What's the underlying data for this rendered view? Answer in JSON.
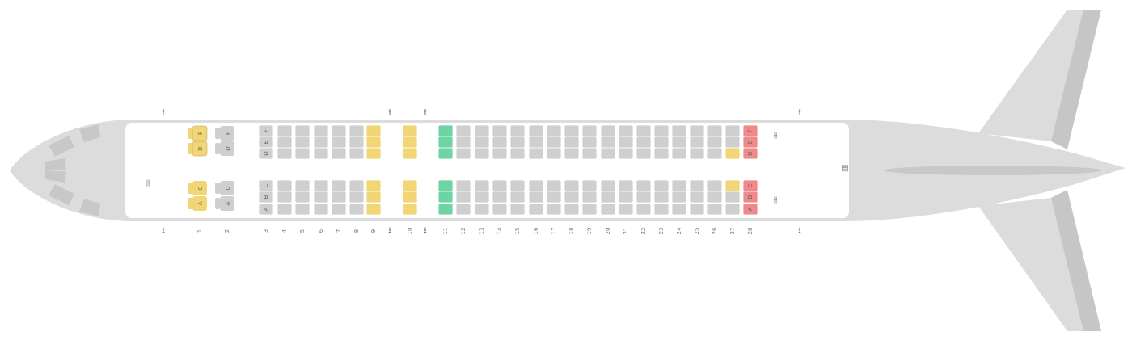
{
  "colors": {
    "fuselage": "#dcdcdc",
    "wing": "#dcdcdc",
    "wing_dark": "#c4c4c4",
    "cabin": "#ffffff",
    "seat_standard": "#cfcfcf",
    "seat_yellow": "#f2d675",
    "seat_green": "#6fd4a3",
    "seat_red": "#f08a8a",
    "window": "#c8c8c8"
  },
  "legend_text": {
    "business_seat_letters_top": [
      "D",
      "F"
    ],
    "business_seat_letters_bottom": [
      "A",
      "C"
    ],
    "economy_seat_letters_top": [
      "D",
      "E",
      "F"
    ],
    "economy_seat_letters_bottom": [
      "A",
      "B",
      "C"
    ]
  },
  "business_rows": [
    {
      "row": "1",
      "color": "yellow"
    },
    {
      "row": "2",
      "color": "standard"
    }
  ],
  "economy_rows": [
    {
      "row": "3",
      "color": "standard",
      "labeled": true
    },
    {
      "row": "4",
      "color": "standard"
    },
    {
      "row": "5",
      "color": "standard"
    },
    {
      "row": "6",
      "color": "standard"
    },
    {
      "row": "7",
      "color": "standard"
    },
    {
      "row": "8",
      "color": "standard"
    },
    {
      "row": "9",
      "color": "yellow"
    },
    {
      "row": "10",
      "color": "yellow"
    },
    {
      "row": "11",
      "color": "green"
    },
    {
      "row": "12",
      "color": "standard"
    },
    {
      "row": "13",
      "color": "standard"
    },
    {
      "row": "14",
      "color": "standard"
    },
    {
      "row": "15",
      "color": "standard"
    },
    {
      "row": "16",
      "color": "standard"
    },
    {
      "row": "17",
      "color": "standard"
    },
    {
      "row": "18",
      "color": "standard"
    },
    {
      "row": "19",
      "color": "standard"
    },
    {
      "row": "20",
      "color": "standard"
    },
    {
      "row": "21",
      "color": "standard"
    },
    {
      "row": "22",
      "color": "standard"
    },
    {
      "row": "23",
      "color": "standard"
    },
    {
      "row": "24",
      "color": "standard"
    },
    {
      "row": "25",
      "color": "standard"
    },
    {
      "row": "26",
      "color": "standard"
    },
    {
      "row": "27",
      "color": "standard",
      "special": "yellow-lower-top-and-upper-bottom"
    },
    {
      "row": "28",
      "color": "red",
      "labeled": true
    }
  ],
  "icons": {
    "exit_top": "exit-arrow-up-icon",
    "exit_bottom": "exit-arrow-down-icon",
    "lavatory": "lavatory-icon",
    "galley": "galley-icon"
  }
}
